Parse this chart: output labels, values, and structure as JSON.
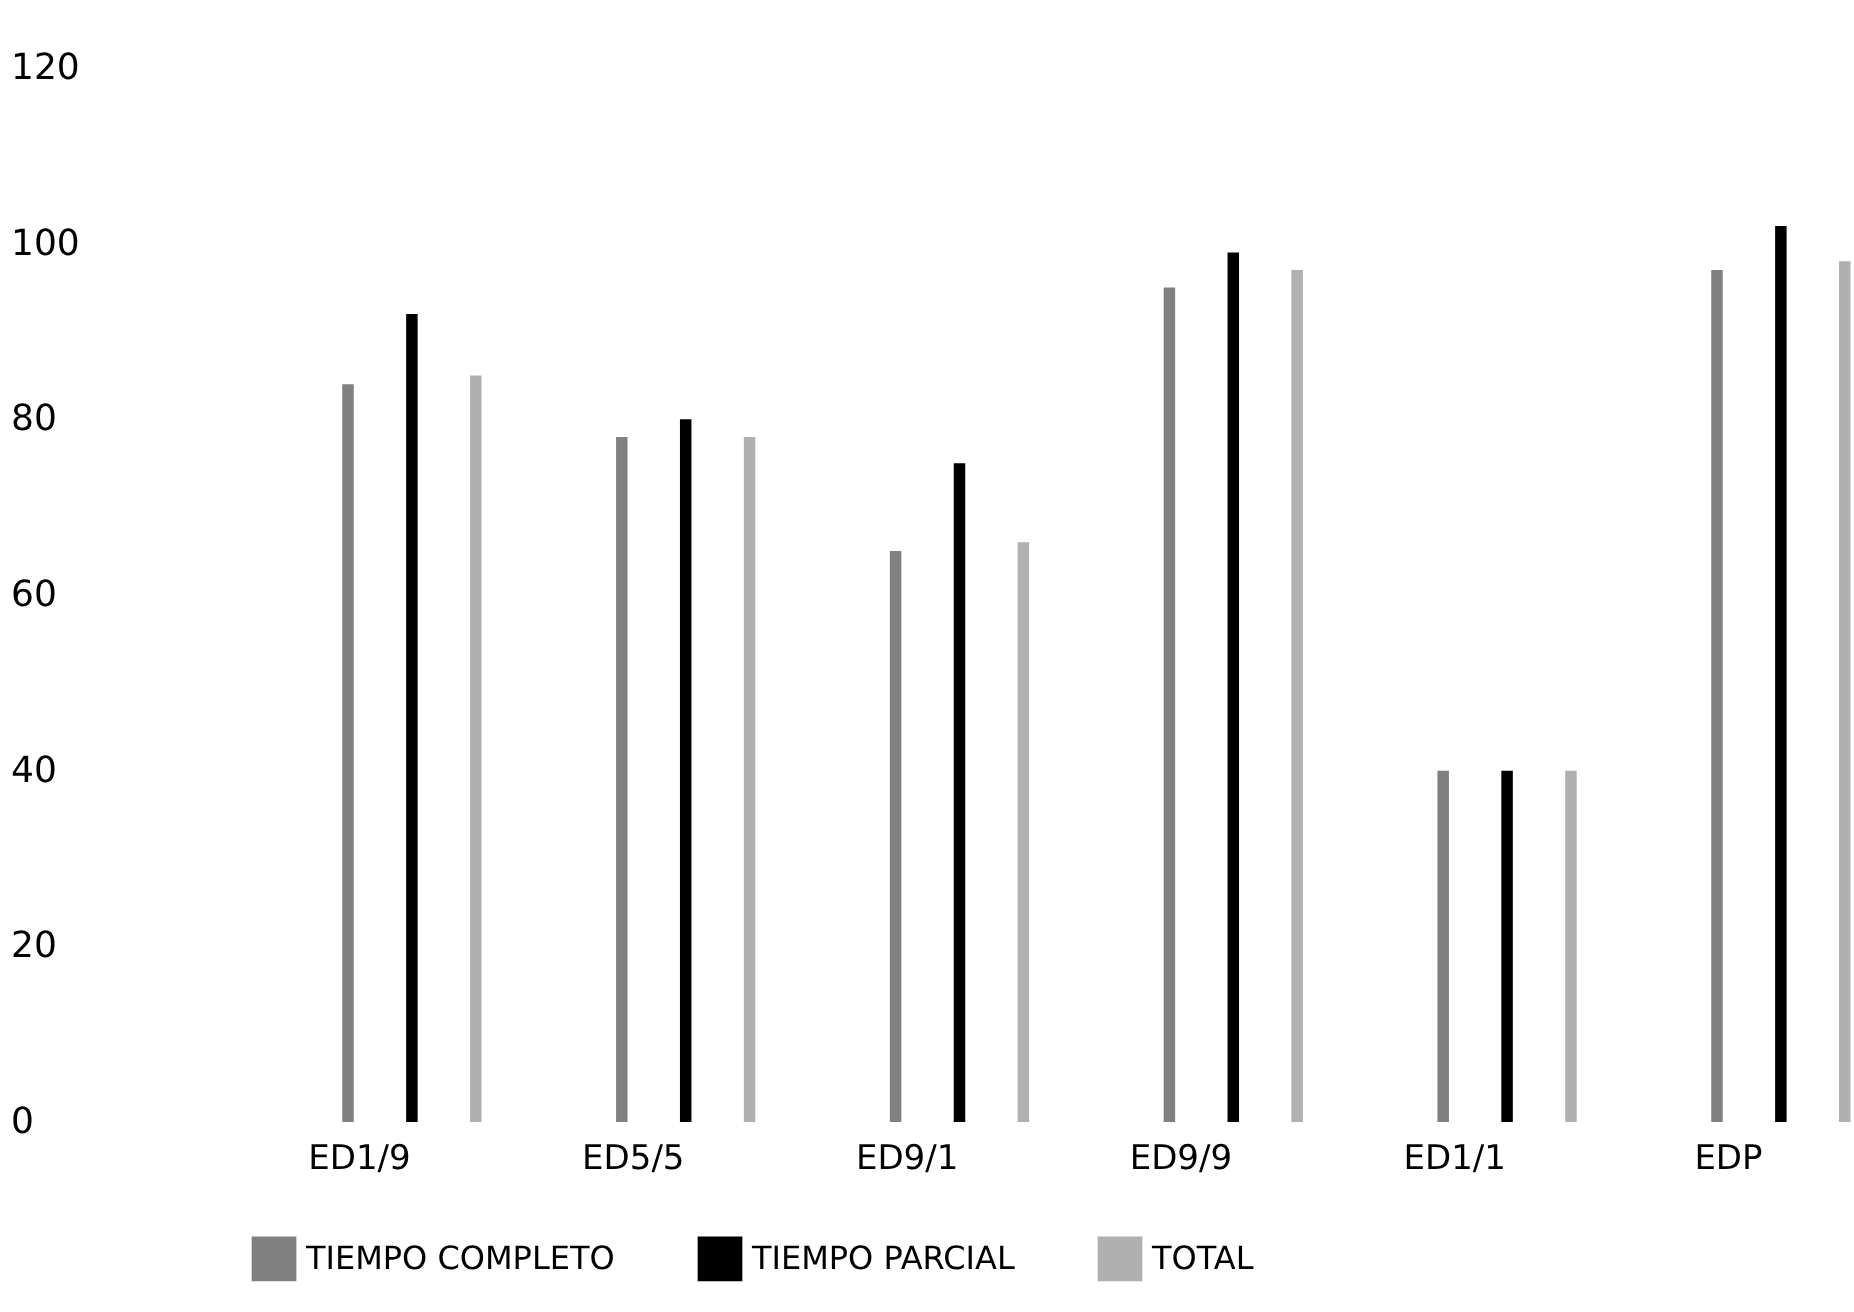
{
  "chart_data": {
    "type": "bar",
    "categories": [
      "ED1/9",
      "ED5/5",
      "ED9/1",
      "ED9/9",
      "ED1/1",
      "EDP"
    ],
    "series": [
      {
        "name": "TIEMPO COMPLETO",
        "color": "#808080",
        "values": [
          84,
          78,
          65,
          95,
          40,
          97
        ]
      },
      {
        "name": "TIEMPO PARCIAL",
        "color": "#000000",
        "values": [
          92,
          80,
          75,
          99,
          40,
          102
        ]
      },
      {
        "name": "TOTAL",
        "color": "#b0b0b0",
        "values": [
          85,
          78,
          66,
          97,
          40,
          98
        ]
      }
    ],
    "ylim": [
      0,
      120
    ],
    "yticks": [
      0,
      20,
      40,
      60,
      80,
      100,
      120
    ],
    "grid": false,
    "legend": "bottom"
  }
}
